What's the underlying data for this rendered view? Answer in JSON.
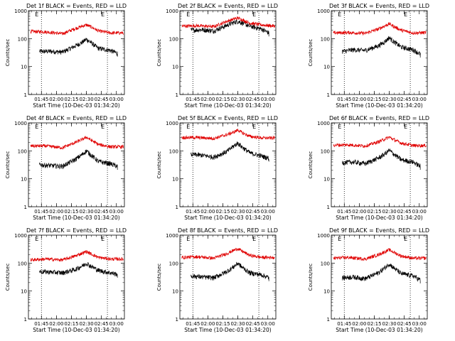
{
  "figure": {
    "xlabel": "Start Time (10-Dec-03 01:34:20)",
    "ylabel": "Counts/sec"
  },
  "colors": {
    "events": "#000000",
    "lld": "#e00000",
    "axis": "#000000"
  },
  "chart_data": [
    {
      "type": "line",
      "title": "Det 1f BLACK = Events, RED = LLD",
      "xlabel": "Start Time (10-Dec-03 01:34:20)",
      "ylabel": "Counts/sec",
      "yscale": "log",
      "ylim": [
        1,
        1000
      ],
      "yticks": [
        "1",
        "10",
        "100",
        "1000"
      ],
      "xlim_min": [
        -2,
        94
      ],
      "xticks": [
        "01:45",
        "02:00",
        "02:15",
        "02:30",
        "02:45",
        "03:00"
      ],
      "xtick_min": [
        11,
        26,
        41,
        56,
        71,
        86
      ],
      "vlines_min": [
        11,
        77
      ],
      "vline_marks": [
        "E",
        "E"
      ],
      "series": [
        {
          "name": "Events",
          "color": "#000000",
          "start_min": 9,
          "end_min": 87,
          "x_min": [
            9,
            20,
            32,
            45,
            52,
            56,
            60,
            68,
            80,
            87
          ],
          "y": [
            35,
            35,
            33,
            55,
            75,
            95,
            75,
            45,
            38,
            30
          ]
        },
        {
          "name": "LLD",
          "color": "#e00000",
          "start_min": 0,
          "end_min": 93,
          "x_min": [
            0,
            15,
            32,
            45,
            52,
            56,
            60,
            68,
            80,
            93
          ],
          "y": [
            180,
            175,
            150,
            230,
            280,
            310,
            270,
            190,
            160,
            160
          ]
        }
      ]
    },
    {
      "type": "line",
      "title": "Det 2f BLACK = Events, RED = LLD",
      "xlabel": "Start Time (10-Dec-03 01:34:20)",
      "ylabel": "Counts/sec",
      "yscale": "log",
      "ylim": [
        1,
        1000
      ],
      "yticks": [
        "1",
        "10",
        "100",
        "1000"
      ],
      "xlim_min": [
        -2,
        94
      ],
      "xticks": [
        "01:45",
        "02:00",
        "02:15",
        "02:30",
        "02:45",
        "03:00"
      ],
      "xtick_min": [
        11,
        26,
        41,
        56,
        71,
        86
      ],
      "vlines_min": [
        11,
        77
      ],
      "vline_marks": [
        "E",
        "E"
      ],
      "series": [
        {
          "name": "Events",
          "color": "#000000",
          "start_min": 9,
          "end_min": 87,
          "x_min": [
            9,
            20,
            32,
            45,
            52,
            56,
            60,
            68,
            80,
            87
          ],
          "y": [
            200,
            210,
            190,
            300,
            380,
            420,
            370,
            280,
            220,
            160
          ]
        },
        {
          "name": "LLD",
          "color": "#e00000",
          "start_min": 0,
          "end_min": 93,
          "x_min": [
            0,
            15,
            32,
            45,
            52,
            56,
            60,
            68,
            80,
            93
          ],
          "y": [
            280,
            290,
            270,
            420,
            500,
            550,
            480,
            360,
            310,
            280
          ]
        }
      ]
    },
    {
      "type": "line",
      "title": "Det 3f BLACK = Events, RED = LLD",
      "xlabel": "Start Time (10-Dec-03 01:34:20)",
      "ylabel": "Counts/sec",
      "yscale": "log",
      "ylim": [
        1,
        1000
      ],
      "yticks": [
        "1",
        "10",
        "100",
        "1000"
      ],
      "xlim_min": [
        -2,
        94
      ],
      "xticks": [
        "01:45",
        "02:00",
        "02:15",
        "02:30",
        "02:45",
        "03:00"
      ],
      "xtick_min": [
        11,
        26,
        41,
        56,
        71,
        86
      ],
      "vlines_min": [
        11,
        77
      ],
      "vline_marks": [
        "E",
        "E"
      ],
      "series": [
        {
          "name": "Events",
          "color": "#000000",
          "start_min": 9,
          "end_min": 87,
          "x_min": [
            9,
            20,
            32,
            45,
            52,
            56,
            60,
            68,
            80,
            87
          ],
          "y": [
            35,
            40,
            38,
            55,
            80,
            110,
            80,
            50,
            40,
            28
          ]
        },
        {
          "name": "LLD",
          "color": "#e00000",
          "start_min": 0,
          "end_min": 93,
          "x_min": [
            0,
            15,
            32,
            45,
            52,
            56,
            60,
            68,
            80,
            93
          ],
          "y": [
            160,
            165,
            155,
            220,
            290,
            340,
            280,
            200,
            160,
            165
          ]
        }
      ]
    },
    {
      "type": "line",
      "title": "Det 4f BLACK = Events, RED = LLD",
      "xlabel": "Start Time (10-Dec-03 01:34:20)",
      "ylabel": "Counts/sec",
      "yscale": "log",
      "ylim": [
        1,
        1000
      ],
      "yticks": [
        "1",
        "10",
        "100",
        "1000"
      ],
      "xlim_min": [
        -2,
        94
      ],
      "xticks": [
        "01:45",
        "02:00",
        "02:15",
        "02:30",
        "02:45",
        "03:00"
      ],
      "xtick_min": [
        11,
        26,
        41,
        56,
        71,
        86
      ],
      "vlines_min": [
        11,
        77
      ],
      "vline_marks": [
        "E",
        "E"
      ],
      "series": [
        {
          "name": "Events",
          "color": "#000000",
          "start_min": 9,
          "end_min": 87,
          "x_min": [
            9,
            20,
            32,
            45,
            52,
            56,
            60,
            68,
            80,
            87
          ],
          "y": [
            32,
            30,
            28,
            50,
            75,
            100,
            75,
            42,
            35,
            28
          ]
        },
        {
          "name": "LLD",
          "color": "#e00000",
          "start_min": 0,
          "end_min": 93,
          "x_min": [
            0,
            15,
            32,
            45,
            52,
            56,
            60,
            68,
            80,
            93
          ],
          "y": [
            150,
            150,
            130,
            200,
            260,
            310,
            250,
            170,
            140,
            140
          ]
        }
      ]
    },
    {
      "type": "line",
      "title": "Det 5f BLACK = Events, RED = LLD",
      "xlabel": "Start Time (10-Dec-03 01:34:20)",
      "ylabel": "Counts/sec",
      "yscale": "log",
      "ylim": [
        1,
        1000
      ],
      "yticks": [
        "1",
        "10",
        "100",
        "1000"
      ],
      "xlim_min": [
        -2,
        94
      ],
      "xticks": [
        "01:45",
        "02:00",
        "02:15",
        "02:30",
        "02:45",
        "03:00"
      ],
      "xtick_min": [
        11,
        26,
        41,
        56,
        71,
        86
      ],
      "vlines_min": [
        11,
        77
      ],
      "vline_marks": [
        "E",
        "E"
      ],
      "series": [
        {
          "name": "Events",
          "color": "#000000",
          "start_min": 9,
          "end_min": 87,
          "x_min": [
            9,
            20,
            32,
            45,
            52,
            56,
            60,
            68,
            80,
            87
          ],
          "y": [
            75,
            70,
            60,
            95,
            150,
            190,
            140,
            85,
            65,
            55
          ]
        },
        {
          "name": "LLD",
          "color": "#e00000",
          "start_min": 0,
          "end_min": 93,
          "x_min": [
            0,
            15,
            32,
            45,
            52,
            56,
            60,
            68,
            80,
            93
          ],
          "y": [
            300,
            300,
            280,
            380,
            470,
            560,
            450,
            330,
            290,
            290
          ]
        }
      ]
    },
    {
      "type": "line",
      "title": "Det 6f BLACK = Events, RED = LLD",
      "xlabel": "Start Time (10-Dec-03 01:34:20)",
      "ylabel": "Counts/sec",
      "yscale": "log",
      "ylim": [
        1,
        1000
      ],
      "yticks": [
        "1",
        "10",
        "100",
        "1000"
      ],
      "xlim_min": [
        -2,
        94
      ],
      "xticks": [
        "01:45",
        "02:00",
        "02:15",
        "02:30",
        "02:45",
        "03:00"
      ],
      "xtick_min": [
        11,
        26,
        41,
        56,
        71,
        86
      ],
      "vlines_min": [
        11,
        77
      ],
      "vline_marks": [
        "E",
        "E"
      ],
      "series": [
        {
          "name": "Events",
          "color": "#000000",
          "start_min": 9,
          "end_min": 87,
          "x_min": [
            9,
            20,
            32,
            45,
            52,
            56,
            60,
            68,
            80,
            87
          ],
          "y": [
            38,
            40,
            35,
            55,
            80,
            105,
            80,
            48,
            40,
            28
          ]
        },
        {
          "name": "LLD",
          "color": "#e00000",
          "start_min": 0,
          "end_min": 93,
          "x_min": [
            0,
            15,
            32,
            45,
            52,
            56,
            60,
            68,
            80,
            93
          ],
          "y": [
            160,
            165,
            150,
            210,
            270,
            310,
            260,
            190,
            155,
            155
          ]
        }
      ]
    },
    {
      "type": "line",
      "title": "Det 7f BLACK = Events, RED = LLD",
      "xlabel": "Start Time (10-Dec-03 01:34:20)",
      "ylabel": "Counts/sec",
      "yscale": "log",
      "ylim": [
        1,
        1000
      ],
      "yticks": [
        "1",
        "10",
        "100",
        "1000"
      ],
      "xlim_min": [
        -2,
        94
      ],
      "xticks": [
        "01:45",
        "02:00",
        "02:15",
        "02:30",
        "02:45",
        "03:00"
      ],
      "xtick_min": [
        11,
        26,
        41,
        56,
        71,
        86
      ],
      "vlines_min": [
        11,
        77
      ],
      "vline_marks": [
        "E",
        "E"
      ],
      "series": [
        {
          "name": "Events",
          "color": "#000000",
          "start_min": 9,
          "end_min": 87,
          "x_min": [
            9,
            20,
            32,
            45,
            52,
            56,
            60,
            68,
            80,
            87
          ],
          "y": [
            50,
            48,
            45,
            60,
            80,
            100,
            80,
            55,
            45,
            40
          ]
        },
        {
          "name": "LLD",
          "color": "#e00000",
          "start_min": 0,
          "end_min": 93,
          "x_min": [
            0,
            15,
            32,
            45,
            52,
            56,
            60,
            68,
            80,
            93
          ],
          "y": [
            130,
            140,
            130,
            180,
            230,
            260,
            220,
            160,
            140,
            140
          ]
        }
      ]
    },
    {
      "type": "line",
      "title": "Det 8f BLACK = Events, RED = LLD",
      "xlabel": "Start Time (10-Dec-03 01:34:20)",
      "ylabel": "Counts/sec",
      "yscale": "log",
      "ylim": [
        1,
        1000
      ],
      "yticks": [
        "1",
        "10",
        "100",
        "1000"
      ],
      "xlim_min": [
        -2,
        94
      ],
      "xticks": [
        "01:45",
        "02:00",
        "02:15",
        "02:30",
        "02:45",
        "03:00"
      ],
      "xtick_min": [
        11,
        26,
        41,
        56,
        71,
        86
      ],
      "vlines_min": [
        11,
        77
      ],
      "vline_marks": [
        "E",
        "E"
      ],
      "series": [
        {
          "name": "Events",
          "color": "#000000",
          "start_min": 9,
          "end_min": 87,
          "x_min": [
            9,
            20,
            32,
            45,
            52,
            56,
            60,
            68,
            80,
            87
          ],
          "y": [
            35,
            32,
            30,
            50,
            75,
            100,
            72,
            45,
            38,
            30
          ]
        },
        {
          "name": "LLD",
          "color": "#e00000",
          "start_min": 0,
          "end_min": 93,
          "x_min": [
            0,
            15,
            32,
            45,
            52,
            56,
            60,
            68,
            80,
            93
          ],
          "y": [
            160,
            170,
            150,
            220,
            290,
            330,
            270,
            190,
            160,
            160
          ]
        }
      ]
    },
    {
      "type": "line",
      "title": "Det 9f BLACK = Events, RED = LLD",
      "xlabel": "Start Time (10-Dec-03 01:34:20)",
      "ylabel": "Counts/sec",
      "yscale": "log",
      "ylim": [
        1,
        1000
      ],
      "yticks": [
        "1",
        "10",
        "100",
        "1000"
      ],
      "xlim_min": [
        -2,
        94
      ],
      "xticks": [
        "01:45",
        "02:00",
        "02:15",
        "02:30",
        "02:45",
        "03:00"
      ],
      "xtick_min": [
        11,
        26,
        41,
        56,
        71,
        86
      ],
      "vlines_min": [
        11,
        77
      ],
      "vline_marks": [
        "E",
        "E"
      ],
      "series": [
        {
          "name": "Events",
          "color": "#000000",
          "start_min": 9,
          "end_min": 87,
          "x_min": [
            9,
            20,
            32,
            45,
            52,
            56,
            60,
            68,
            80,
            87
          ],
          "y": [
            30,
            32,
            28,
            45,
            70,
            95,
            70,
            42,
            35,
            25
          ]
        },
        {
          "name": "LLD",
          "color": "#e00000",
          "start_min": 0,
          "end_min": 93,
          "x_min": [
            0,
            15,
            32,
            45,
            52,
            56,
            60,
            68,
            80,
            93
          ],
          "y": [
            150,
            160,
            140,
            200,
            260,
            300,
            250,
            180,
            150,
            150
          ]
        }
      ]
    }
  ]
}
